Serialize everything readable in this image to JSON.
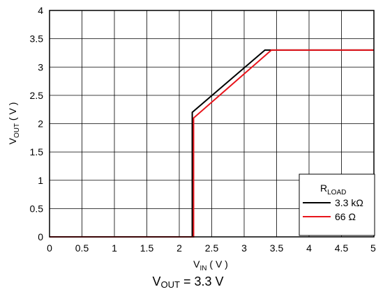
{
  "chart_data": {
    "type": "line",
    "xlabel": {
      "main": "V",
      "sub": "IN",
      "unit": " ( V )"
    },
    "ylabel": {
      "main": "V",
      "sub": "OUT",
      "unit": " ( V )"
    },
    "xlim": [
      0,
      5
    ],
    "ylim": [
      0,
      4
    ],
    "xticks": [
      "0",
      "0.5",
      "1",
      "1.5",
      "2",
      "2.5",
      "3",
      "3.5",
      "4",
      "4.5",
      "5"
    ],
    "yticks": [
      "0",
      "0.5",
      "1",
      "1.5",
      "2",
      "2.5",
      "3",
      "3.5",
      "4"
    ],
    "grid": true,
    "legend": {
      "title_main": "R",
      "title_sub": "LOAD",
      "placement": "bottom-right"
    },
    "series": [
      {
        "name": "3.3 kΩ",
        "color": "#000000",
        "x": [
          0,
          2.2,
          2.2,
          3.32,
          5
        ],
        "y": [
          0,
          0,
          2.2,
          3.3,
          3.3
        ]
      },
      {
        "name": "66 Ω",
        "color": "#e8141b",
        "x": [
          0,
          2.22,
          2.22,
          3.42,
          5
        ],
        "y": [
          0,
          0,
          2.1,
          3.3,
          3.3
        ]
      }
    ]
  },
  "caption": {
    "main": "V",
    "sub": "OUT",
    "rest": " = 3.3 V"
  }
}
